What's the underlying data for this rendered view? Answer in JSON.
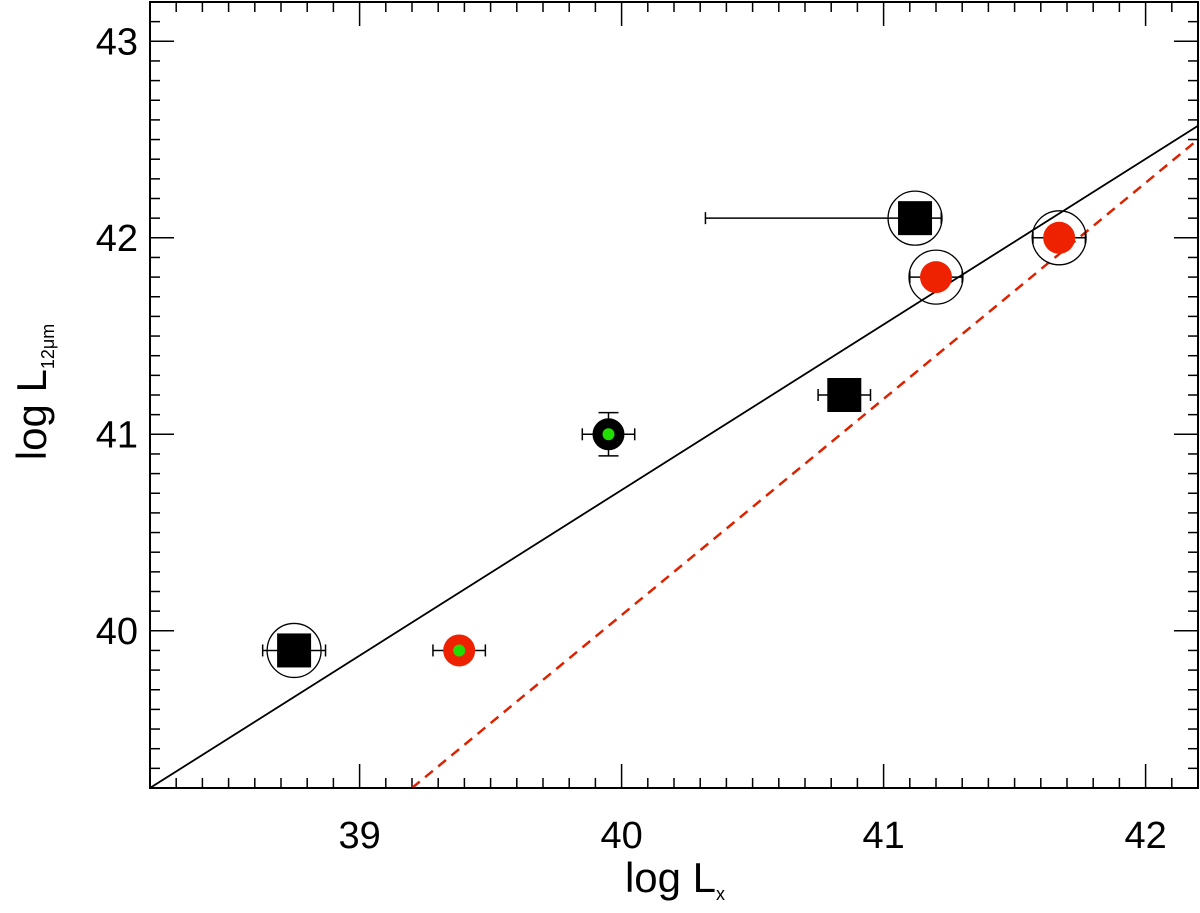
{
  "chart_data": {
    "type": "scatter",
    "title": "",
    "xlabel": {
      "main": "log L",
      "sub": "x"
    },
    "ylabel": {
      "main": "log L",
      "sub": "12μm"
    },
    "xlim": [
      38.2,
      42.2
    ],
    "ylim": [
      39.2,
      43.2
    ],
    "x_ticks": [
      39,
      40,
      41,
      42
    ],
    "y_ticks": [
      40,
      41,
      42,
      43
    ],
    "x_minor_step": 0.1,
    "y_minor_step": 0.1,
    "grid": false,
    "colors": {
      "red": "#ee2200",
      "green": "#22dd00",
      "black": "#000000",
      "dashed_line": "#dd2200"
    },
    "lines": [
      {
        "style": "solid",
        "color": "#000000",
        "points": [
          [
            38.2,
            39.2
          ],
          [
            42.2,
            42.57
          ]
        ]
      },
      {
        "style": "dashed",
        "color": "#dd2200",
        "points": [
          [
            39.2,
            39.2
          ],
          [
            42.2,
            42.5
          ]
        ]
      }
    ],
    "points": [
      {
        "x": 38.75,
        "y": 39.9,
        "marker": "square",
        "fill": "#000000",
        "inner": null,
        "circled": true,
        "xerr": [
          0.12,
          0.12
        ],
        "yerr": null
      },
      {
        "x": 39.38,
        "y": 39.9,
        "marker": "circle",
        "fill": "#ee2200",
        "inner": "#22dd00",
        "circled": false,
        "xerr": [
          0.1,
          0.1
        ],
        "yerr": null
      },
      {
        "x": 39.95,
        "y": 41.0,
        "marker": "circle",
        "fill": "#000000",
        "inner": "#22dd00",
        "circled": false,
        "xerr": [
          0.1,
          0.1
        ],
        "yerr": [
          0.11,
          0.11
        ]
      },
      {
        "x": 40.85,
        "y": 41.2,
        "marker": "square",
        "fill": "#000000",
        "inner": null,
        "circled": false,
        "xerr": [
          0.1,
          0.1
        ],
        "yerr": null
      },
      {
        "x": 41.12,
        "y": 42.1,
        "marker": "square",
        "fill": "#000000",
        "inner": null,
        "circled": true,
        "xerr": [
          0.8,
          0.1
        ],
        "yerr": null
      },
      {
        "x": 41.2,
        "y": 41.8,
        "marker": "circle",
        "fill": "#ee2200",
        "inner": null,
        "circled": true,
        "xerr": [
          0.1,
          0.1
        ],
        "yerr": null
      },
      {
        "x": 41.67,
        "y": 42.0,
        "marker": "circle",
        "fill": "#ee2200",
        "inner": null,
        "circled": true,
        "xerr": [
          0.1,
          0.1
        ],
        "yerr": null
      }
    ]
  }
}
